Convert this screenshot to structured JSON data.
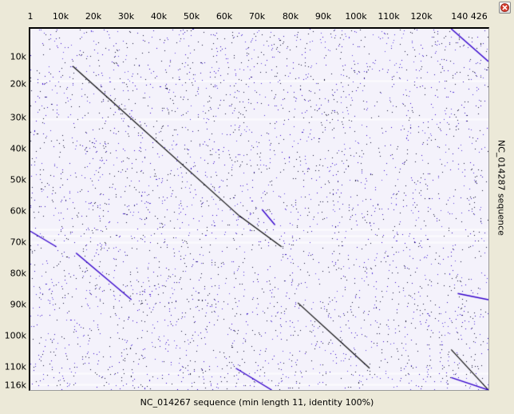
{
  "window": {
    "close_icon": "close-icon",
    "close_color": "#d83a2b"
  },
  "chart_data": {
    "type": "scatter",
    "subtype": "dot-plot",
    "xlabel": "",
    "ylabel": "NC_014287 sequence",
    "caption": "NC_014267 sequence (min length 11, identity 100%)",
    "x_ticks": [
      "1",
      "10k",
      "20k",
      "30k",
      "40k",
      "50k",
      "60k",
      "70k",
      "80k",
      "90k",
      "100k",
      "110k",
      "120k",
      "140 426"
    ],
    "y_ticks": [
      "10k",
      "20k",
      "30k",
      "40k",
      "50k",
      "60k",
      "70k",
      "80k",
      "90k",
      "100k",
      "110k",
      "116k"
    ],
    "xlim": [
      1,
      140426
    ],
    "ylim": [
      1,
      116000
    ],
    "colors": {
      "forward_match": "#000000",
      "reverse_match": "#3300cc",
      "background": "#f4f2fb"
    },
    "series": [
      {
        "orientation": "forward",
        "x": [
          13000,
          64000
        ],
        "y": [
          12000,
          60000
        ]
      },
      {
        "orientation": "forward",
        "x": [
          64000,
          77000
        ],
        "y": [
          60000,
          70000
        ]
      },
      {
        "orientation": "forward",
        "x": [
          82000,
          104000
        ],
        "y": [
          88000,
          109000
        ]
      },
      {
        "orientation": "forward",
        "x": [
          129000,
          140426
        ],
        "y": [
          103000,
          116000
        ]
      },
      {
        "orientation": "reverse",
        "x": [
          129000,
          140426
        ],
        "y": [
          1,
          10500
        ]
      },
      {
        "orientation": "reverse",
        "x": [
          1,
          8000
        ],
        "y": [
          65000,
          70000
        ]
      },
      {
        "orientation": "reverse",
        "x": [
          14000,
          31000
        ],
        "y": [
          72000,
          87000
        ]
      },
      {
        "orientation": "reverse",
        "x": [
          71000,
          75000
        ],
        "y": [
          58000,
          63000
        ]
      },
      {
        "orientation": "reverse",
        "x": [
          63000,
          74000
        ],
        "y": [
          109000,
          116000
        ]
      },
      {
        "orientation": "reverse",
        "x": [
          129000,
          140426
        ],
        "y": [
          112000,
          116000
        ]
      },
      {
        "orientation": "reverse",
        "x": [
          131000,
          140426
        ],
        "y": [
          85000,
          87000
        ]
      }
    ]
  }
}
